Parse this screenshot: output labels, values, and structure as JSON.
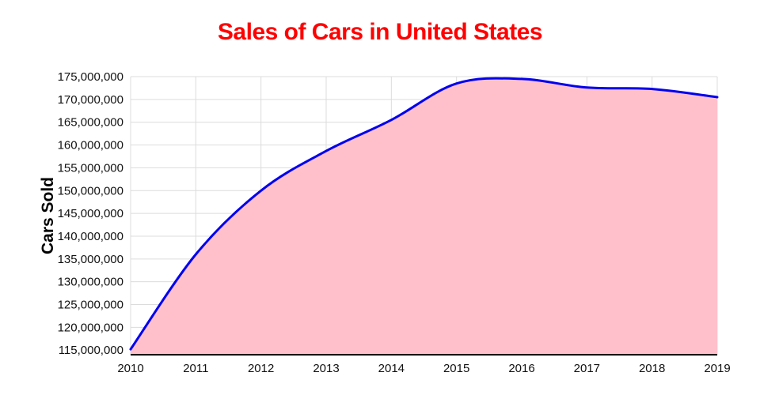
{
  "chart_data": {
    "type": "area",
    "title": "Sales of Cars in United States",
    "title_color": "#ff0000",
    "xlabel": "",
    "ylabel": "Cars Sold",
    "categories": [
      "2010",
      "2011",
      "2012",
      "2013",
      "2014",
      "2015",
      "2016",
      "2017",
      "2018",
      "2019"
    ],
    "series": [
      {
        "name": "Cars Sold",
        "values": [
          115200000,
          136000000,
          150000000,
          158700000,
          165500000,
          173500000,
          174500000,
          172600000,
          172300000,
          170500000
        ]
      }
    ],
    "ylim": [
      114000000,
      175000000
    ],
    "yticks": [
      115000000,
      120000000,
      125000000,
      130000000,
      135000000,
      140000000,
      145000000,
      150000000,
      155000000,
      160000000,
      165000000,
      170000000,
      175000000
    ],
    "ytick_labels": [
      "115,000,000",
      "120,000,000",
      "125,000,000",
      "130,000,000",
      "135,000,000",
      "140,000,000",
      "145,000,000",
      "150,000,000",
      "155,000,000",
      "160,000,000",
      "165,000,000",
      "170,000,000",
      "175,000,000"
    ],
    "grid": true,
    "legend_position": "none",
    "smooth": true,
    "line_color": "#0000ee",
    "fill_color": "#ffc0cb",
    "grid_color": "#dcdcdc",
    "axis_line_color": "#000000",
    "tick_text_color": "#111111"
  }
}
